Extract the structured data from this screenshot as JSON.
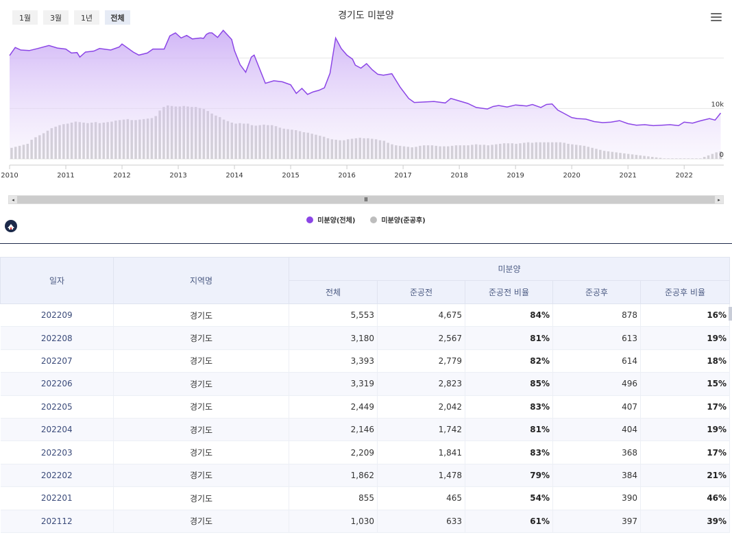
{
  "toolbar": {
    "range_buttons": [
      "1월",
      "3월",
      "1년",
      "전체"
    ],
    "active_index": 3
  },
  "chart_data": {
    "type": "area",
    "title": "경기도 미분양",
    "x_ticks": [
      "2010",
      "2011",
      "2012",
      "2013",
      "2014",
      "2015",
      "2016",
      "2017",
      "2018",
      "2019",
      "2020",
      "2021",
      "2022"
    ],
    "y_ticks": [
      "0",
      "10k"
    ],
    "ylim": [
      0,
      25000
    ],
    "grid": true,
    "legend_position": "bottom",
    "series": [
      {
        "name": "미분양(전체)",
        "type": "area",
        "color": "#8b45e6",
        "points": [
          [
            2010.0,
            20500
          ],
          [
            2010.1,
            22100
          ],
          [
            2010.2,
            21600
          ],
          [
            2010.35,
            21500
          ],
          [
            2010.5,
            21900
          ],
          [
            2010.7,
            22500
          ],
          [
            2010.85,
            22000
          ],
          [
            2011.0,
            21800
          ],
          [
            2011.1,
            21000
          ],
          [
            2011.2,
            21100
          ],
          [
            2011.25,
            20200
          ],
          [
            2011.35,
            21200
          ],
          [
            2011.5,
            21400
          ],
          [
            2011.6,
            21900
          ],
          [
            2011.8,
            21600
          ],
          [
            2011.95,
            22200
          ],
          [
            2012.0,
            22800
          ],
          [
            2012.2,
            21200
          ],
          [
            2012.3,
            20600
          ],
          [
            2012.45,
            21000
          ],
          [
            2012.55,
            21800
          ],
          [
            2012.75,
            21800
          ],
          [
            2012.85,
            24400
          ],
          [
            2012.95,
            25000
          ],
          [
            2013.05,
            24000
          ],
          [
            2013.15,
            24500
          ],
          [
            2013.25,
            23800
          ],
          [
            2013.4,
            24000
          ],
          [
            2013.45,
            23900
          ],
          [
            2013.5,
            24700
          ],
          [
            2013.55,
            25000
          ],
          [
            2013.6,
            25000
          ],
          [
            2013.7,
            24100
          ],
          [
            2013.8,
            25500
          ],
          [
            2013.95,
            23700
          ],
          [
            2014.0,
            21500
          ],
          [
            2014.1,
            18700
          ],
          [
            2014.2,
            17200
          ],
          [
            2014.3,
            20200
          ],
          [
            2014.35,
            20600
          ],
          [
            2014.45,
            17800
          ],
          [
            2014.55,
            15000
          ],
          [
            2014.7,
            15500
          ],
          [
            2014.85,
            15300
          ],
          [
            2015.0,
            14700
          ],
          [
            2015.1,
            13000
          ],
          [
            2015.2,
            14000
          ],
          [
            2015.3,
            12800
          ],
          [
            2015.4,
            13300
          ],
          [
            2015.5,
            13600
          ],
          [
            2015.6,
            14100
          ],
          [
            2015.7,
            17000
          ],
          [
            2015.8,
            24000
          ],
          [
            2015.9,
            21900
          ],
          [
            2016.0,
            20600
          ],
          [
            2016.1,
            19800
          ],
          [
            2016.15,
            18600
          ],
          [
            2016.25,
            18000
          ],
          [
            2016.35,
            18900
          ],
          [
            2016.45,
            17700
          ],
          [
            2016.55,
            16800
          ],
          [
            2016.65,
            16600
          ],
          [
            2016.8,
            16900
          ],
          [
            2016.95,
            14200
          ],
          [
            2017.1,
            12000
          ],
          [
            2017.2,
            11200
          ],
          [
            2017.4,
            11300
          ],
          [
            2017.55,
            11400
          ],
          [
            2017.75,
            11100
          ],
          [
            2017.85,
            12000
          ],
          [
            2018.0,
            11500
          ],
          [
            2018.15,
            11000
          ],
          [
            2018.3,
            10200
          ],
          [
            2018.5,
            9900
          ],
          [
            2018.6,
            10400
          ],
          [
            2018.7,
            10600
          ],
          [
            2018.85,
            10300
          ],
          [
            2019.0,
            10700
          ],
          [
            2019.2,
            10500
          ],
          [
            2019.3,
            10800
          ],
          [
            2019.45,
            10200
          ],
          [
            2019.55,
            10800
          ],
          [
            2019.65,
            10900
          ],
          [
            2019.75,
            9700
          ],
          [
            2019.85,
            9100
          ],
          [
            2020.0,
            8200
          ],
          [
            2020.1,
            8000
          ],
          [
            2020.25,
            7900
          ],
          [
            2020.4,
            7400
          ],
          [
            2020.55,
            7200
          ],
          [
            2020.7,
            7300
          ],
          [
            2020.85,
            7600
          ],
          [
            2021.0,
            7000
          ],
          [
            2021.15,
            6700
          ],
          [
            2021.3,
            6800
          ],
          [
            2021.45,
            6600
          ],
          [
            2021.6,
            6700
          ],
          [
            2021.75,
            6800
          ],
          [
            2021.9,
            6600
          ],
          [
            2022.0,
            7300
          ],
          [
            2022.15,
            7100
          ],
          [
            2022.3,
            7600
          ],
          [
            2022.45,
            8000
          ],
          [
            2022.55,
            7700
          ],
          [
            2022.65,
            9100
          ]
        ]
      },
      {
        "name": "미분양(준공후)",
        "type": "bar",
        "color": "#bdbdbd",
        "values": [
          2200,
          2400,
          2600,
          2800,
          3000,
          3800,
          4300,
          4700,
          5100,
          5600,
          6100,
          6400,
          6700,
          6900,
          7000,
          7200,
          7400,
          7300,
          7200,
          7100,
          7200,
          7300,
          7100,
          7200,
          7300,
          7400,
          7600,
          7700,
          7800,
          7900,
          7700,
          7700,
          7800,
          7900,
          8000,
          8100,
          8500,
          9600,
          10300,
          10600,
          10500,
          10400,
          10400,
          10500,
          10400,
          10300,
          10300,
          10100,
          9900,
          9500,
          9000,
          8600,
          8300,
          7800,
          7500,
          7200,
          7000,
          7100,
          7000,
          7000,
          6700,
          6600,
          6700,
          6800,
          6700,
          6700,
          6500,
          6200,
          6000,
          5900,
          5800,
          5700,
          5500,
          5300,
          5200,
          5000,
          4800,
          4600,
          4400,
          4100,
          3900,
          3800,
          3700,
          3700,
          3900,
          4000,
          4100,
          4200,
          4100,
          4100,
          4000,
          3900,
          3700,
          3600,
          3200,
          2900,
          2700,
          2600,
          2500,
          2400,
          2300,
          2400,
          2600,
          2700,
          2700,
          2700,
          2600,
          2500,
          2500,
          2500,
          2600,
          2700,
          2700,
          2700,
          2700,
          2800,
          2900,
          2800,
          2800,
          2700,
          2800,
          2900,
          3000,
          3100,
          3100,
          3100,
          3000,
          3100,
          3200,
          3300,
          3200,
          3300,
          3300,
          3300,
          3300,
          3300,
          3300,
          3300,
          3200,
          3000,
          2900,
          2800,
          2700,
          2600,
          2400,
          2200,
          2000,
          1800,
          1600,
          1500,
          1400,
          1300,
          1200,
          1100,
          1000,
          900,
          800,
          700,
          600,
          500,
          400,
          300,
          200,
          100,
          100,
          100,
          100,
          100,
          100,
          100,
          100,
          100,
          100,
          400,
          700,
          1000,
          1300,
          1500
        ]
      }
    ]
  },
  "table": {
    "headers": {
      "date": "일자",
      "region": "지역명",
      "group": "미분양",
      "total": "전체",
      "before": "준공전",
      "before_ratio": "준공전 비율",
      "after": "준공후",
      "after_ratio": "준공후 비율"
    },
    "rows": [
      [
        "202209",
        "경기도",
        "5,553",
        "4,675",
        "84%",
        "878",
        "16%"
      ],
      [
        "202208",
        "경기도",
        "3,180",
        "2,567",
        "81%",
        "613",
        "19%"
      ],
      [
        "202207",
        "경기도",
        "3,393",
        "2,779",
        "82%",
        "614",
        "18%"
      ],
      [
        "202206",
        "경기도",
        "3,319",
        "2,823",
        "85%",
        "496",
        "15%"
      ],
      [
        "202205",
        "경기도",
        "2,449",
        "2,042",
        "83%",
        "407",
        "17%"
      ],
      [
        "202204",
        "경기도",
        "2,146",
        "1,742",
        "81%",
        "404",
        "19%"
      ],
      [
        "202203",
        "경기도",
        "2,209",
        "1,841",
        "83%",
        "368",
        "17%"
      ],
      [
        "202202",
        "경기도",
        "1,862",
        "1,478",
        "79%",
        "384",
        "21%"
      ],
      [
        "202201",
        "경기도",
        "855",
        "465",
        "54%",
        "390",
        "46%"
      ],
      [
        "202112",
        "경기도",
        "1,030",
        "633",
        "61%",
        "397",
        "39%"
      ]
    ]
  }
}
